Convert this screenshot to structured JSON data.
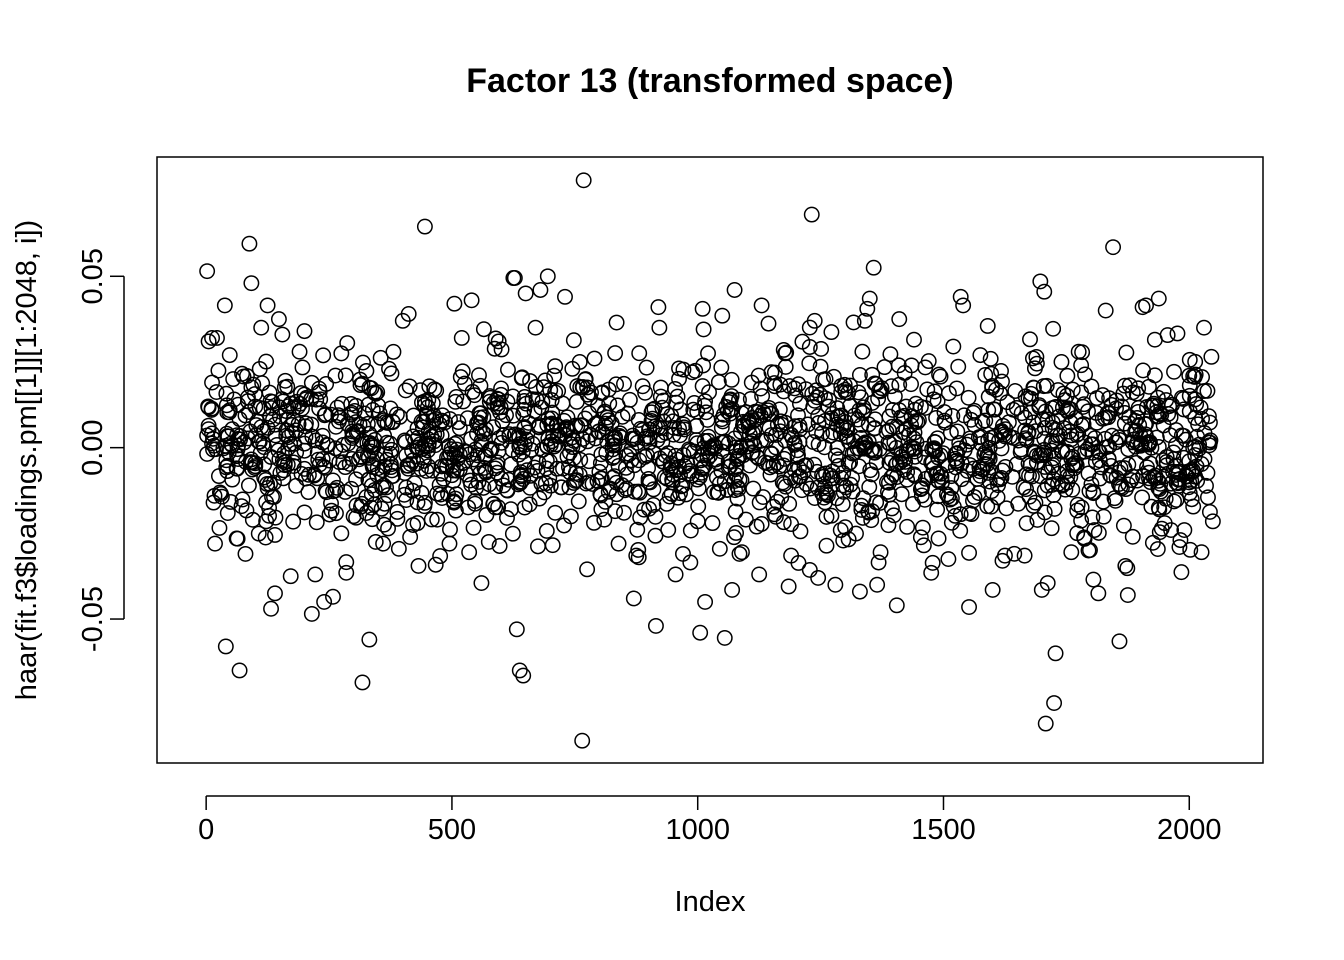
{
  "chart_data": {
    "type": "scatter",
    "title": "Factor 13 (transformed space)",
    "xlabel": "Index",
    "ylabel": "haar(fit.f3$loadings.pm[[1]][1:2048, i])",
    "xlim": [
      -100,
      2150
    ],
    "ylim": [
      -0.092,
      0.0848
    ],
    "x_ticks": [
      0,
      500,
      1000,
      1500,
      2000
    ],
    "x_tick_labels": [
      "0",
      "500",
      "1000",
      "1500",
      "2000"
    ],
    "y_ticks": [
      -0.05,
      0,
      0.05
    ],
    "y_tick_labels": [
      "-0.05",
      "0.00",
      "0.05"
    ],
    "grid": false,
    "legend": "none",
    "marker": "open-circle",
    "n_points": 2048,
    "points": [
      [
        2,
        0.0515
      ],
      [
        5,
        0.031
      ],
      [
        12,
        0.019
      ],
      [
        18,
        -0.028
      ],
      [
        22,
        0.032
      ],
      [
        30,
        -0.0135
      ],
      [
        38,
        0.0415
      ],
      [
        40,
        -0.058
      ],
      [
        48,
        0.027
      ],
      [
        55,
        0.02
      ],
      [
        62,
        -0.0265
      ],
      [
        68,
        -0.065
      ],
      [
        80,
        -0.031
      ],
      [
        88,
        0.0595
      ],
      [
        92,
        0.048
      ],
      [
        100,
        0.012
      ],
      [
        112,
        0.035
      ],
      [
        125,
        0.0415
      ],
      [
        132,
        -0.047
      ],
      [
        140,
        -0.0425
      ],
      [
        148,
        0.0375
      ],
      [
        155,
        0.033
      ],
      [
        172,
        -0.0375
      ],
      [
        190,
        0.028
      ],
      [
        200,
        0.034
      ],
      [
        215,
        -0.0485
      ],
      [
        222,
        -0.037
      ],
      [
        240,
        -0.045
      ],
      [
        258,
        -0.0435
      ],
      [
        275,
        -0.025
      ],
      [
        285,
        -0.0365
      ],
      [
        300,
        -0.02
      ],
      [
        318,
        -0.0685
      ],
      [
        332,
        -0.056
      ],
      [
        345,
        -0.0275
      ],
      [
        360,
        -0.028
      ],
      [
        372,
        0.023
      ],
      [
        392,
        -0.0295
      ],
      [
        400,
        0.037
      ],
      [
        412,
        0.039
      ],
      [
        432,
        -0.0345
      ],
      [
        445,
        0.0645
      ],
      [
        470,
        -0.021
      ],
      [
        495,
        -0.028
      ],
      [
        505,
        0.042
      ],
      [
        520,
        0.032
      ],
      [
        535,
        -0.0305
      ],
      [
        540,
        0.043
      ],
      [
        560,
        -0.0395
      ],
      [
        575,
        -0.0275
      ],
      [
        595,
        0.031
      ],
      [
        612,
        -0.0205
      ],
      [
        625,
        0.0495
      ],
      [
        628,
        0.0495
      ],
      [
        632,
        -0.053
      ],
      [
        638,
        -0.065
      ],
      [
        645,
        -0.0665
      ],
      [
        650,
        0.045
      ],
      [
        670,
        0.035
      ],
      [
        680,
        0.046
      ],
      [
        695,
        0.05
      ],
      [
        710,
        -0.019
      ],
      [
        730,
        0.044
      ],
      [
        745,
        0.023
      ],
      [
        760,
        0.025
      ],
      [
        765,
        -0.0855
      ],
      [
        768,
        0.078
      ],
      [
        775,
        -0.0355
      ],
      [
        790,
        0.026
      ],
      [
        810,
        -0.021
      ],
      [
        835,
        0.0365
      ],
      [
        850,
        -0.019
      ],
      [
        870,
        -0.044
      ],
      [
        875,
        -0.0315
      ],
      [
        880,
        -0.032
      ],
      [
        900,
        -0.01
      ],
      [
        915,
        -0.052
      ],
      [
        920,
        0.041
      ],
      [
        922,
        0.035
      ],
      [
        940,
        -0.024
      ],
      [
        955,
        -0.037
      ],
      [
        970,
        -0.031
      ],
      [
        985,
        -0.0335
      ],
      [
        1000,
        -0.0215
      ],
      [
        1005,
        -0.054
      ],
      [
        1010,
        0.0405
      ],
      [
        1012,
        0.0345
      ],
      [
        1015,
        -0.045
      ],
      [
        1030,
        -0.022
      ],
      [
        1045,
        -0.0295
      ],
      [
        1050,
        0.0385
      ],
      [
        1055,
        -0.0555
      ],
      [
        1070,
        -0.0415
      ],
      [
        1075,
        0.046
      ],
      [
        1085,
        -0.031
      ],
      [
        1090,
        -0.0305
      ],
      [
        1110,
        0.019
      ],
      [
        1125,
        -0.037
      ],
      [
        1130,
        0.0415
      ],
      [
        1150,
        0.022
      ],
      [
        1175,
        0.0285
      ],
      [
        1185,
        -0.0405
      ],
      [
        1190,
        -0.0315
      ],
      [
        1205,
        0.0185
      ],
      [
        1232,
        0.068
      ],
      [
        1238,
        0.037
      ],
      [
        1245,
        -0.038
      ],
      [
        1260,
        0.02
      ],
      [
        1280,
        -0.04
      ],
      [
        1295,
        -0.0165
      ],
      [
        1330,
        -0.042
      ],
      [
        1335,
        0.028
      ],
      [
        1340,
        0.037
      ],
      [
        1345,
        0.0405
      ],
      [
        1350,
        0.0435
      ],
      [
        1358,
        0.0525
      ],
      [
        1365,
        -0.04
      ],
      [
        1368,
        -0.0335
      ],
      [
        1372,
        -0.0305
      ],
      [
        1380,
        0.0235
      ],
      [
        1405,
        -0.046
      ],
      [
        1410,
        0.0375
      ],
      [
        1435,
        0.024
      ],
      [
        1440,
        0.0315
      ],
      [
        1460,
        -0.0285
      ],
      [
        1475,
        -0.0365
      ],
      [
        1490,
        -0.0265
      ],
      [
        1510,
        -0.0325
      ],
      [
        1520,
        0.0295
      ],
      [
        1535,
        0.044
      ],
      [
        1540,
        0.0415
      ],
      [
        1552,
        -0.0465
      ],
      [
        1560,
        -0.0155
      ],
      [
        1575,
        0.027
      ],
      [
        1590,
        0.0355
      ],
      [
        1600,
        -0.0415
      ],
      [
        1610,
        -0.0225
      ],
      [
        1620,
        -0.033
      ],
      [
        1625,
        -0.0315
      ],
      [
        1640,
        -0.0085
      ],
      [
        1665,
        -0.0315
      ],
      [
        1690,
        0.0245
      ],
      [
        1697,
        0.0485
      ],
      [
        1700,
        -0.0415
      ],
      [
        1705,
        0.0455
      ],
      [
        1708,
        -0.0805
      ],
      [
        1712,
        -0.0395
      ],
      [
        1720,
        -0.0235
      ],
      [
        1725,
        -0.0745
      ],
      [
        1728,
        -0.06
      ],
      [
        1740,
        0.025
      ],
      [
        1760,
        -0.0305
      ],
      [
        1775,
        0.028
      ],
      [
        1795,
        -0.03
      ],
      [
        1805,
        -0.0385
      ],
      [
        1815,
        -0.0425
      ],
      [
        1830,
        0.04
      ],
      [
        1845,
        0.0585
      ],
      [
        1858,
        -0.0565
      ],
      [
        1870,
        -0.0345
      ],
      [
        1875,
        -0.043
      ],
      [
        1885,
        -0.026
      ],
      [
        1905,
        0.041
      ],
      [
        1912,
        0.0415
      ],
      [
        1930,
        0.0315
      ],
      [
        1938,
        0.0435
      ],
      [
        1950,
        -0.022
      ],
      [
        1965,
        0.0125
      ],
      [
        1980,
        -0.029
      ],
      [
        2000,
        0.021
      ],
      [
        2015,
        -0.0055
      ],
      [
        2025,
        -0.0305
      ],
      [
        2030,
        0.035
      ],
      [
        2045,
        0.0265
      ],
      [
        2048,
        -0.0215
      ],
      [
        2042,
        0.0015
      ],
      [
        2038,
        -0.0145
      ],
      [
        2030,
        0.0165
      ]
    ]
  }
}
